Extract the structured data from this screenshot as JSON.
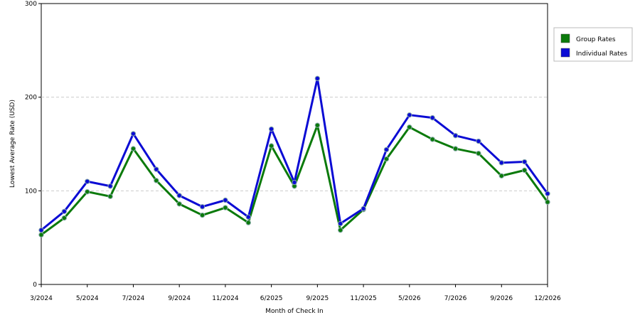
{
  "chart_data": {
    "type": "line",
    "x_label": "Month of Check In",
    "y_label": "Lowest Average Rate (USD)",
    "categories": [
      "3/2024",
      null,
      "5/2024",
      null,
      "7/2024",
      null,
      "9/2024",
      null,
      "11/2024",
      null,
      "6/2025",
      null,
      "9/2025",
      null,
      "11/2025",
      null,
      "5/2026",
      null,
      "7/2026",
      null,
      "9/2026",
      null,
      "12/2026"
    ],
    "series": [
      {
        "name": "Group Rates",
        "color": "#0b7a0b",
        "values": [
          53,
          71,
          99,
          94,
          145,
          111,
          86,
          74,
          82,
          66,
          148,
          105,
          170,
          58,
          80,
          134,
          168,
          155,
          145,
          140,
          116,
          122,
          88
        ]
      },
      {
        "name": "Individual Rates",
        "color": "#0b0bd4",
        "values": [
          58,
          78,
          110,
          105,
          161,
          123,
          95,
          83,
          90,
          72,
          166,
          109,
          220,
          65,
          81,
          144,
          181,
          178,
          159,
          153,
          130,
          131,
          97
        ]
      }
    ],
    "ylim": [
      0,
      300
    ],
    "yticks": [
      0,
      100,
      200,
      300
    ],
    "grid": true,
    "legend": "right"
  }
}
